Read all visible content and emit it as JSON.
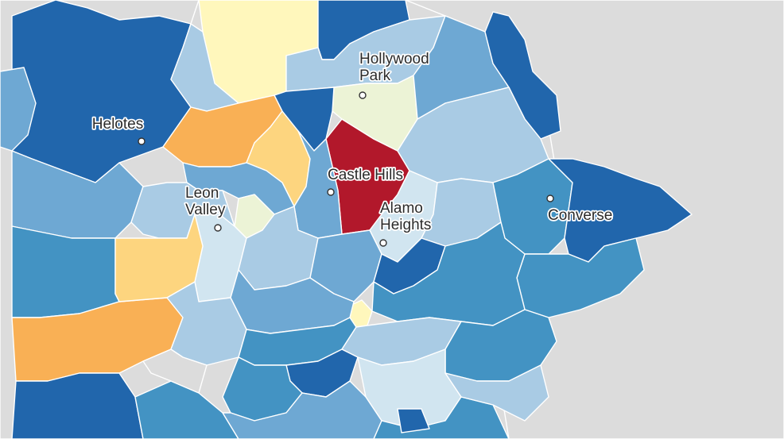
{
  "colors": {
    "outside": "#dcdcdc",
    "dark_blue": "#2166ac",
    "blue": "#4393c3",
    "mid_blue": "#6ea8d3",
    "light_blue": "#a9cbe4",
    "pale_blue": "#d1e5f0",
    "pale_yellow": "#ecf3d6",
    "yellow": "#fff7bc",
    "light_orange": "#fdd57f",
    "orange": "#f9b055",
    "red": "#b2182b"
  },
  "cities": [
    {
      "name": "Helotes",
      "lines": [
        "Helotes"
      ]
    },
    {
      "name": "Hollywood Park",
      "lines": [
        "Hollywood",
        "Park"
      ]
    },
    {
      "name": "Castle Hills",
      "lines": [
        "Castle Hills"
      ]
    },
    {
      "name": "Leon Valley",
      "lines": [
        "Leon",
        "Valley"
      ]
    },
    {
      "name": "Alamo Heights",
      "lines": [
        "Alamo",
        "Heights"
      ]
    },
    {
      "name": "Converse",
      "lines": [
        "Converse"
      ]
    }
  ]
}
